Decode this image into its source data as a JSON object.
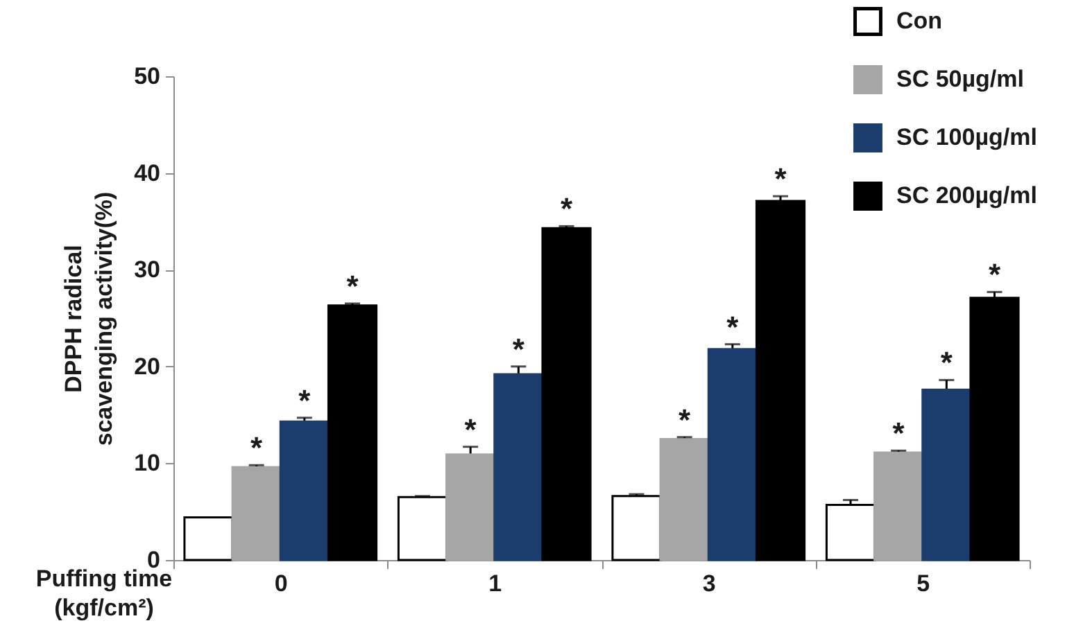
{
  "chart_data": {
    "type": "bar",
    "xlabel": "Puffing time\n(kgf/cm²)",
    "ylabel": "DPPH radical\nscavenging activity(%)",
    "categories": [
      "0",
      "1",
      "3",
      "5"
    ],
    "ylim": [
      0,
      50
    ],
    "yticks": [
      0,
      10,
      20,
      30,
      40,
      50
    ],
    "legend": "top right",
    "grid": false,
    "series": [
      {
        "name": "Con",
        "color": "#ffffff",
        "values": [
          4.4,
          6.5,
          6.6,
          5.7
        ],
        "errors": [
          null,
          0.1,
          0.2,
          0.5
        ]
      },
      {
        "name": "SC 50µg/ml",
        "color": "#a6a6a6",
        "values": [
          9.6,
          10.9,
          12.5,
          11.1
        ],
        "errors": [
          0.2,
          0.8,
          0.2,
          0.2
        ],
        "value_labels": [
          "*",
          "*",
          "*",
          "*"
        ]
      },
      {
        "name": "SC 100µg/ml",
        "color": "#1a3d6d",
        "values": [
          14.3,
          19.2,
          21.8,
          17.6
        ],
        "errors": [
          0.4,
          0.8,
          0.5,
          1.0
        ],
        "value_labels": [
          "*",
          "*",
          "*",
          "*"
        ]
      },
      {
        "name": "SC 200µg/ml",
        "color": "#000000",
        "values": [
          26.3,
          34.3,
          37.1,
          27.1
        ],
        "errors": [
          0.2,
          0.2,
          0.5,
          0.6
        ],
        "value_labels": [
          "*",
          "*",
          "*",
          "*"
        ]
      }
    ]
  }
}
